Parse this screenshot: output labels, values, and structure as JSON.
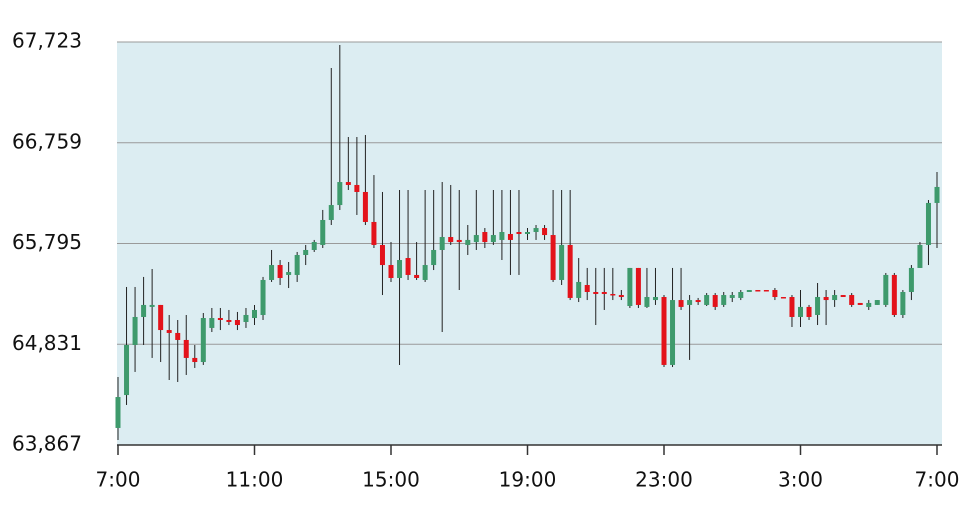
{
  "chart_data": {
    "type": "candlestick",
    "categories": [
      "7:00",
      null,
      null,
      null,
      null,
      null,
      null,
      null,
      null,
      null,
      null,
      null,
      null,
      null,
      null,
      null,
      "11:00",
      null,
      null,
      null,
      null,
      null,
      null,
      null,
      null,
      null,
      null,
      null,
      null,
      null,
      null,
      null,
      "15:00",
      null,
      null,
      null,
      null,
      null,
      null,
      null,
      null,
      null,
      null,
      null,
      null,
      null,
      null,
      null,
      "19:00",
      null,
      null,
      null,
      null,
      null,
      null,
      null,
      null,
      null,
      null,
      null,
      null,
      null,
      null,
      null,
      "23:00",
      null,
      null,
      null,
      null,
      null,
      null,
      null,
      null,
      null,
      null,
      null,
      null,
      null,
      null,
      null,
      "3:00",
      null,
      null,
      null,
      null,
      null,
      null,
      null,
      null,
      null,
      null,
      null,
      null,
      null,
      null,
      null,
      "7:00"
    ],
    "open": [
      64030,
      64345,
      64824,
      65092,
      65188,
      65207,
      64967,
      64939,
      64872,
      64700,
      64661,
      64987,
      65082,
      65063,
      65063,
      65044,
      65082,
      65111,
      65446,
      65589,
      65494,
      65494,
      65685,
      65733,
      65781,
      66020,
      66163,
      66383,
      66355,
      66288,
      66001,
      65781,
      65589,
      65465,
      65656,
      65494,
      65446,
      65589,
      65733,
      65857,
      65829,
      65781,
      65809,
      65905,
      65809,
      65829,
      65886,
      65905,
      65886,
      65905,
      65943,
      65876,
      65446,
      65781,
      65274,
      65398,
      65331,
      65331,
      65312,
      65302,
      65197,
      65561,
      65188,
      65254,
      65283,
      64633,
      65254,
      65207,
      65254,
      65207,
      65302,
      65207,
      65274,
      65274,
      65331,
      65350,
      65350,
      65350,
      65283,
      65283,
      65092,
      65188,
      65111,
      65283,
      65254,
      65302,
      65302,
      65226,
      65188,
      65207,
      65207,
      65494,
      65111,
      65331,
      65561,
      65781,
      66183
    ],
    "high": [
      64518,
      65379,
      65379,
      65475,
      65551,
      65207,
      65111,
      65063,
      65111,
      64824,
      65130,
      65178,
      65178,
      65159,
      65140,
      65178,
      65207,
      65475,
      65733,
      65637,
      65618,
      65714,
      65781,
      65829,
      66116,
      67474,
      67694,
      66814,
      66814,
      66833,
      66450,
      66288,
      65809,
      66307,
      66307,
      65809,
      66307,
      66307,
      66383,
      66355,
      66307,
      65972,
      66307,
      65943,
      66307,
      66307,
      66307,
      66307,
      65943,
      65972,
      65972,
      66307,
      66307,
      66307,
      65656,
      65561,
      65561,
      65561,
      65561,
      65350,
      65561,
      65561,
      65561,
      65561,
      65302,
      65561,
      65561,
      65302,
      65274,
      65321,
      65321,
      65331,
      65331,
      65350,
      65350,
      65350,
      65350,
      65369,
      65283,
      65302,
      65350,
      65207,
      65417,
      65350,
      65350,
      65302,
      65321,
      65226,
      65254,
      65254,
      65513,
      65513,
      65350,
      65589,
      65809,
      66211,
      66479
    ],
    "low": [
      63915,
      64250,
      64566,
      64824,
      64700,
      64661,
      64489,
      64470,
      64537,
      64604,
      64633,
      64948,
      64967,
      65015,
      64967,
      64987,
      65015,
      65063,
      65427,
      65398,
      65369,
      65427,
      65589,
      65714,
      65752,
      65972,
      66116,
      66307,
      66068,
      65972,
      65752,
      65302,
      65427,
      64633,
      65446,
      65446,
      65427,
      65541,
      64948,
      65781,
      65350,
      65685,
      65733,
      65752,
      65781,
      65637,
      65494,
      65494,
      65829,
      65829,
      65829,
      65427,
      65398,
      65254,
      65235,
      65254,
      65015,
      65159,
      65254,
      65254,
      65178,
      65178,
      65178,
      65207,
      64613,
      64613,
      65159,
      64681,
      65207,
      65197,
      65159,
      65188,
      65235,
      65254,
      65331,
      65341,
      65341,
      65254,
      65274,
      64996,
      64996,
      65063,
      65015,
      65015,
      65188,
      65283,
      65188,
      65207,
      65159,
      65207,
      65188,
      65092,
      65082,
      65254,
      65561,
      65589,
      65752
    ],
    "close": [
      64326,
      64824,
      65092,
      65207,
      65207,
      64967,
      64939,
      64872,
      64700,
      64661,
      65082,
      65082,
      65063,
      65044,
      65015,
      65111,
      65159,
      65446,
      65589,
      65465,
      65522,
      65685,
      65733,
      65809,
      66020,
      66163,
      66383,
      66355,
      66288,
      66001,
      65781,
      65589,
      65465,
      65637,
      65494,
      65465,
      65589,
      65733,
      65857,
      65809,
      65809,
      65829,
      65876,
      65809,
      65876,
      65905,
      65829,
      65886,
      65905,
      65943,
      65876,
      65446,
      65781,
      65274,
      65427,
      65331,
      65312,
      65312,
      65302,
      65283,
      65561,
      65207,
      65283,
      65283,
      64633,
      65254,
      65188,
      65254,
      65235,
      65302,
      65188,
      65302,
      65302,
      65331,
      65350,
      65341,
      65341,
      65283,
      65274,
      65092,
      65188,
      65092,
      65283,
      65254,
      65302,
      65283,
      65207,
      65207,
      65226,
      65254,
      65494,
      65111,
      65331,
      65561,
      65781,
      66183,
      66336
    ],
    "up_color": "#3e9a6c",
    "down_color": "#e3131b",
    "ylim": [
      63867,
      67723
    ],
    "yticks": [
      {
        "value": 63867,
        "label": "63,867"
      },
      {
        "value": 64831,
        "label": "64,831"
      },
      {
        "value": 65795,
        "label": "65,795"
      },
      {
        "value": 66759,
        "label": "66,759"
      },
      {
        "value": 67723,
        "label": "67,723"
      }
    ],
    "grid": true
  }
}
